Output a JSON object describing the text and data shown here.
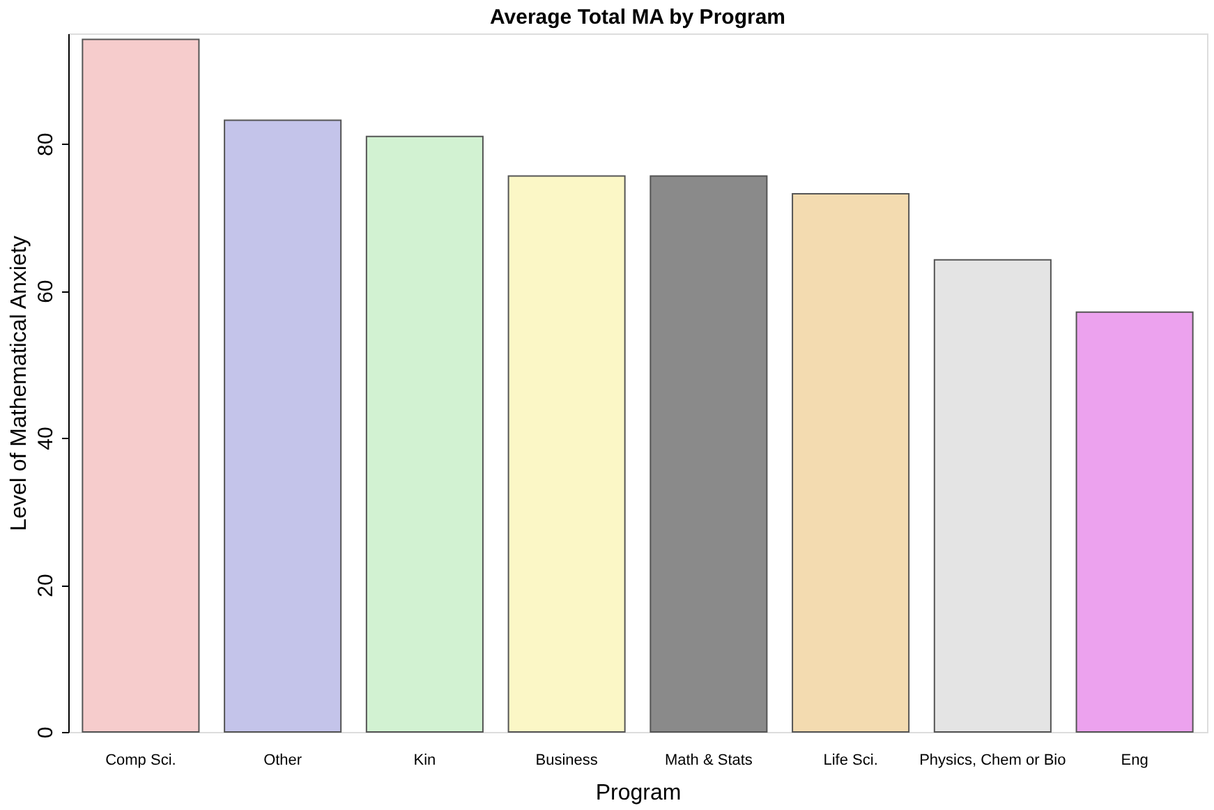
{
  "chart_data": {
    "type": "bar",
    "title": "Average Total MA by Program",
    "xlabel": "Program",
    "ylabel": "Level of Mathematical Anxiety",
    "categories": [
      "Comp Sci.",
      "Other",
      "Kin",
      "Business",
      "Math & Stats",
      "Life Sci.",
      "Physics, Chem or Bio",
      "Eng"
    ],
    "values": [
      94.2,
      83.2,
      81.0,
      75.6,
      75.6,
      73.2,
      64.2,
      57.1
    ],
    "colors": [
      "#f6cccc",
      "#c4c4ea",
      "#d2f2d2",
      "#fbf7c6",
      "#8a8a8a",
      "#f3dbb0",
      "#e4e4e4",
      "#eca2ee"
    ],
    "ylim": [
      0,
      95
    ],
    "yticks": [
      0,
      20,
      40,
      60,
      80
    ],
    "grid": false
  }
}
